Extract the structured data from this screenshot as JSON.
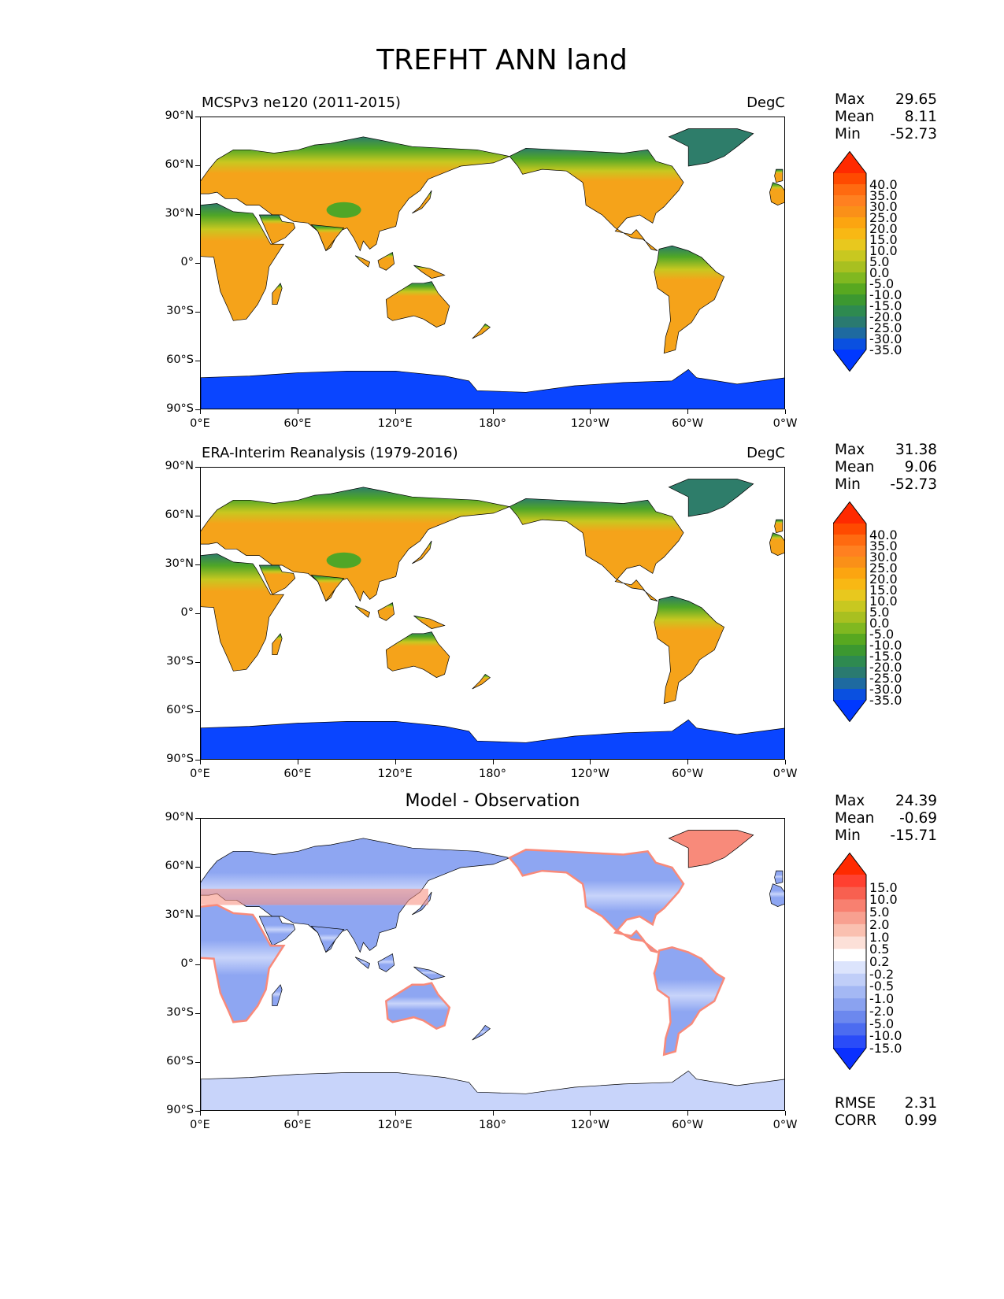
{
  "figure": {
    "title": "TREFHT ANN land"
  },
  "axes": {
    "lat_ticks": [
      "90°N",
      "60°N",
      "30°N",
      "0°",
      "30°S",
      "60°S",
      "90°S"
    ],
    "lon_ticks": [
      "0°E",
      "60°E",
      "120°E",
      "180°",
      "120°W",
      "60°W",
      "0°W"
    ]
  },
  "panels": [
    {
      "title_left": "MCSPv3 ne120 (2011-2015)",
      "title_right": "DegC",
      "stats": [
        {
          "label": "Max",
          "value": "29.65"
        },
        {
          "label": "Mean",
          "value": "8.11"
        },
        {
          "label": "Min",
          "value": "-52.73"
        }
      ],
      "colorbar": {
        "labels": [
          "40.0",
          "35.0",
          "30.0",
          "25.0",
          "20.0",
          "15.0",
          "10.0",
          "5.0",
          "0.0",
          "-5.0",
          "-10.0",
          "-15.0",
          "-20.0",
          "-25.0",
          "-30.0",
          "-35.0"
        ],
        "colors": [
          "#ff2a00",
          "#ff4a00",
          "#ff6a10",
          "#ff8020",
          "#fa9018",
          "#fca510",
          "#f8b814",
          "#e8c81e",
          "#c8c820",
          "#a8c020",
          "#80b820",
          "#58a820",
          "#3c9830",
          "#2e8a50",
          "#2a7a70",
          "#1e6aa0",
          "#0a50e0",
          "#0038ff"
        ]
      }
    },
    {
      "title_left": "ERA-Interim Reanalysis (1979-2016)",
      "title_right": "DegC",
      "stats": [
        {
          "label": "Max",
          "value": "31.38"
        },
        {
          "label": "Mean",
          "value": "9.06"
        },
        {
          "label": "Min",
          "value": "-52.73"
        }
      ],
      "colorbar": {
        "labels": [
          "40.0",
          "35.0",
          "30.0",
          "25.0",
          "20.0",
          "15.0",
          "10.0",
          "5.0",
          "0.0",
          "-5.0",
          "-10.0",
          "-15.0",
          "-20.0",
          "-25.0",
          "-30.0",
          "-35.0"
        ],
        "colors": [
          "#ff2a00",
          "#ff4a00",
          "#ff6a10",
          "#ff8020",
          "#fa9018",
          "#fca510",
          "#f8b814",
          "#e8c81e",
          "#c8c820",
          "#a8c020",
          "#80b820",
          "#58a820",
          "#3c9830",
          "#2e8a50",
          "#2a7a70",
          "#1e6aa0",
          "#0a50e0",
          "#0038ff"
        ]
      }
    },
    {
      "title_center": "Model - Observation",
      "stats": [
        {
          "label": "Max",
          "value": "24.39"
        },
        {
          "label": "Mean",
          "value": "-0.69"
        },
        {
          "label": "Min",
          "value": "-15.71"
        }
      ],
      "colorbar": {
        "labels": [
          "15.0",
          "10.0",
          "5.0",
          "2.0",
          "1.0",
          "0.5",
          "0.2",
          "-0.2",
          "-0.5",
          "-1.0",
          "-2.0",
          "-5.0",
          "-10.0",
          "-15.0"
        ],
        "colors": [
          "#ff2a00",
          "#ff4030",
          "#f86050",
          "#f88070",
          "#f8a090",
          "#fac0b0",
          "#fce0d8",
          "#ffffff",
          "#dce4fc",
          "#c0cef8",
          "#a4b8f4",
          "#8aa2f0",
          "#6c88ee",
          "#4c6cf0",
          "#2a4cf8",
          "#0a30ff"
        ]
      },
      "metrics": [
        {
          "label": "RMSE",
          "value": "2.31"
        },
        {
          "label": "CORR",
          "value": "0.99"
        }
      ]
    }
  ],
  "map_style": {
    "abs_warm": "#f5a31a",
    "abs_mid": "#c8c820",
    "abs_green": "#4fa627",
    "abs_teal": "#2e7d6a",
    "abs_ice": "#0a45ff",
    "diff_blue": "#8ea6f2",
    "diff_light": "#c8d4fa",
    "diff_red": "#f88a7a"
  }
}
